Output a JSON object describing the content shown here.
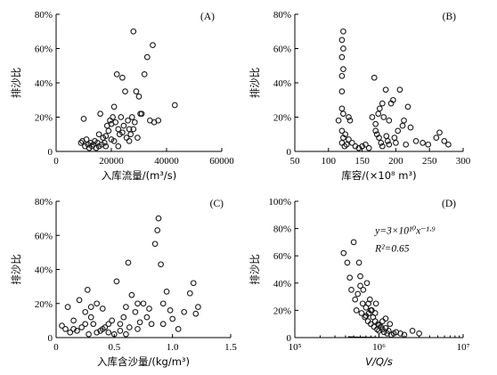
{
  "chart_data": [
    {
      "type": "scatter",
      "panel_label": "(A)",
      "xlabel": "入库流量/(m³/s)",
      "ylabel": "排沙比",
      "xlim": [
        0,
        60000
      ],
      "ylim": [
        0,
        80
      ],
      "x_ticks": [
        0,
        20000,
        40000,
        60000
      ],
      "x_tick_labels": [
        "0",
        "20000",
        "40000",
        "60000"
      ],
      "y_ticks": [
        0,
        20,
        40,
        60,
        80
      ],
      "y_tick_labels": [
        "0",
        "20%",
        "40%",
        "60%",
        "80%"
      ],
      "points": [
        [
          9000,
          5
        ],
        [
          9500,
          6
        ],
        [
          10000,
          19
        ],
        [
          10500,
          3
        ],
        [
          11000,
          7
        ],
        [
          11500,
          4
        ],
        [
          12000,
          2
        ],
        [
          12500,
          5
        ],
        [
          13000,
          3
        ],
        [
          13500,
          4
        ],
        [
          14000,
          6
        ],
        [
          14500,
          2
        ],
        [
          15000,
          5
        ],
        [
          15500,
          3
        ],
        [
          16000,
          22
        ],
        [
          16500,
          4
        ],
        [
          17000,
          8
        ],
        [
          17500,
          5
        ],
        [
          18000,
          9
        ],
        [
          18500,
          15
        ],
        [
          19000,
          12
        ],
        [
          19500,
          18
        ],
        [
          20000,
          7
        ],
        [
          20500,
          20
        ],
        [
          21000,
          26
        ],
        [
          21500,
          17
        ],
        [
          22000,
          45
        ],
        [
          22500,
          13
        ],
        [
          23000,
          10
        ],
        [
          23500,
          20
        ],
        [
          24000,
          43
        ],
        [
          24500,
          15
        ],
        [
          25000,
          35
        ],
        [
          25500,
          8
        ],
        [
          26000,
          18
        ],
        [
          26500,
          13
        ],
        [
          27000,
          10
        ],
        [
          27500,
          20
        ],
        [
          28000,
          70
        ],
        [
          28500,
          17
        ],
        [
          29000,
          35
        ],
        [
          29500,
          8
        ],
        [
          30000,
          32
        ],
        [
          30500,
          22
        ],
        [
          31000,
          22
        ],
        [
          32000,
          45
        ],
        [
          33000,
          55
        ],
        [
          34000,
          18
        ],
        [
          35000,
          62
        ],
        [
          35500,
          17
        ],
        [
          37000,
          18
        ],
        [
          43000,
          27
        ],
        [
          20000,
          16
        ],
        [
          22500,
          3
        ],
        [
          24000,
          11
        ],
        [
          26500,
          6
        ],
        [
          28000,
          13
        ],
        [
          18000,
          3
        ],
        [
          21000,
          6
        ],
        [
          15500,
          10
        ]
      ]
    },
    {
      "type": "scatter",
      "panel_label": "(B)",
      "xlabel": "库容/(×10⁸ m³)",
      "ylabel": "排沙比",
      "xlim": [
        50,
        300
      ],
      "ylim": [
        0,
        80
      ],
      "x_ticks": [
        50,
        100,
        150,
        200,
        250,
        300
      ],
      "x_tick_labels": [
        "50",
        "100",
        "150",
        "200",
        "250",
        "300"
      ],
      "y_ticks": [
        0,
        20,
        40,
        60,
        80
      ],
      "y_tick_labels": [
        "0",
        "20%",
        "40%",
        "60%",
        "80%"
      ],
      "points": [
        [
          115,
          18
        ],
        [
          120,
          65
        ],
        [
          120,
          55
        ],
        [
          120,
          44
        ],
        [
          120,
          35
        ],
        [
          120,
          25
        ],
        [
          120,
          12
        ],
        [
          120,
          5
        ],
        [
          122,
          70
        ],
        [
          122,
          60
        ],
        [
          122,
          48
        ],
        [
          122,
          22
        ],
        [
          122,
          8
        ],
        [
          124,
          3
        ],
        [
          125,
          10
        ],
        [
          127,
          4
        ],
        [
          130,
          20
        ],
        [
          130,
          7
        ],
        [
          132,
          18
        ],
        [
          135,
          5
        ],
        [
          140,
          3
        ],
        [
          145,
          2
        ],
        [
          150,
          3
        ],
        [
          155,
          4
        ],
        [
          160,
          2
        ],
        [
          165,
          20
        ],
        [
          168,
          43
        ],
        [
          170,
          16
        ],
        [
          172,
          10
        ],
        [
          175,
          8
        ],
        [
          178,
          5
        ],
        [
          180,
          3
        ],
        [
          182,
          20
        ],
        [
          185,
          36
        ],
        [
          188,
          6
        ],
        [
          190,
          18
        ],
        [
          193,
          28
        ],
        [
          196,
          30
        ],
        [
          200,
          5
        ],
        [
          203,
          12
        ],
        [
          206,
          36
        ],
        [
          210,
          15
        ],
        [
          212,
          18
        ],
        [
          215,
          4
        ],
        [
          218,
          26
        ],
        [
          222,
          14
        ],
        [
          230,
          6
        ],
        [
          240,
          5
        ],
        [
          248,
          4
        ],
        [
          260,
          8
        ],
        [
          265,
          11
        ],
        [
          272,
          6
        ],
        [
          278,
          4
        ],
        [
          170,
          12
        ],
        [
          176,
          25
        ],
        [
          174,
          22
        ],
        [
          180,
          28
        ],
        [
          186,
          9
        ],
        [
          190,
          4
        ],
        [
          198,
          8
        ]
      ]
    },
    {
      "type": "scatter",
      "panel_label": "(C)",
      "xlabel": "入库含沙量/(kg/m³)",
      "ylabel": "排沙比",
      "xlim": [
        0,
        1.5
      ],
      "ylim": [
        0,
        80
      ],
      "x_ticks": [
        0,
        0.5,
        1.0,
        1.5
      ],
      "x_tick_labels": [
        "0",
        "0.5",
        "1.0",
        "1.5"
      ],
      "y_ticks": [
        0,
        20,
        40,
        60,
        80
      ],
      "y_tick_labels": [
        "0",
        "20%",
        "40%",
        "60%",
        "80%"
      ],
      "points": [
        [
          0.05,
          7
        ],
        [
          0.08,
          5
        ],
        [
          0.1,
          18
        ],
        [
          0.12,
          3
        ],
        [
          0.15,
          10
        ],
        [
          0.18,
          4
        ],
        [
          0.2,
          22
        ],
        [
          0.22,
          6
        ],
        [
          0.25,
          15
        ],
        [
          0.27,
          28
        ],
        [
          0.28,
          2
        ],
        [
          0.3,
          12
        ],
        [
          0.32,
          8
        ],
        [
          0.35,
          20
        ],
        [
          0.38,
          4
        ],
        [
          0.4,
          17
        ],
        [
          0.42,
          6
        ],
        [
          0.45,
          3
        ],
        [
          0.48,
          10
        ],
        [
          0.5,
          2
        ],
        [
          0.52,
          33
        ],
        [
          0.55,
          8
        ],
        [
          0.58,
          12
        ],
        [
          0.6,
          18
        ],
        [
          0.62,
          44
        ],
        [
          0.63,
          6
        ],
        [
          0.65,
          25
        ],
        [
          0.68,
          15
        ],
        [
          0.7,
          5
        ],
        [
          0.72,
          9
        ],
        [
          0.75,
          20
        ],
        [
          0.78,
          12
        ],
        [
          0.8,
          17
        ],
        [
          0.82,
          8
        ],
        [
          0.85,
          55
        ],
        [
          0.87,
          63
        ],
        [
          0.88,
          70
        ],
        [
          0.9,
          43
        ],
        [
          0.92,
          20
        ],
        [
          0.95,
          27
        ],
        [
          0.98,
          16
        ],
        [
          1.0,
          11
        ],
        [
          1.05,
          5
        ],
        [
          1.1,
          15
        ],
        [
          1.15,
          26
        ],
        [
          1.18,
          32
        ],
        [
          1.2,
          14
        ],
        [
          1.22,
          18
        ],
        [
          0.7,
          20
        ],
        [
          0.4,
          5
        ],
        [
          0.25,
          8
        ],
        [
          0.35,
          3
        ],
        [
          0.55,
          4
        ],
        [
          0.92,
          8
        ],
        [
          0.15,
          5
        ],
        [
          0.3,
          18
        ],
        [
          0.45,
          8
        ],
        [
          0.6,
          2
        ]
      ]
    },
    {
      "type": "scatter",
      "panel_label": "(D)",
      "xlabel": "V/Q/s",
      "ylabel": "排沙比",
      "xscale": "log",
      "xlim": [
        100000,
        10000000
      ],
      "ylim": [
        0,
        100
      ],
      "x_ticks": [
        100000,
        1000000,
        10000000
      ],
      "x_tick_labels": [
        "10⁵",
        "10⁶",
        "10⁷"
      ],
      "y_ticks": [
        0,
        20,
        40,
        60,
        80,
        100
      ],
      "y_tick_labels": [
        "0",
        "20%",
        "40%",
        "60%",
        "80%",
        "100%"
      ],
      "fit_equation": "y=3×10¹⁰x⁻¹·⁹",
      "r_squared": "R²=0.65",
      "fit": {
        "a": 30000000000,
        "b": -1.9,
        "x_range": [
          430000,
          2000000
        ]
      },
      "points": [
        [
          380000,
          62
        ],
        [
          420000,
          55
        ],
        [
          450000,
          44
        ],
        [
          470000,
          35
        ],
        [
          500000,
          70
        ],
        [
          520000,
          28
        ],
        [
          540000,
          20
        ],
        [
          560000,
          32
        ],
        [
          580000,
          55
        ],
        [
          600000,
          45
        ],
        [
          620000,
          18
        ],
        [
          640000,
          25
        ],
        [
          650000,
          35
        ],
        [
          680000,
          15
        ],
        [
          700000,
          22
        ],
        [
          720000,
          40
        ],
        [
          740000,
          12
        ],
        [
          760000,
          18
        ],
        [
          780000,
          28
        ],
        [
          800000,
          10
        ],
        [
          820000,
          20
        ],
        [
          850000,
          15
        ],
        [
          870000,
          8
        ],
        [
          900000,
          12
        ],
        [
          920000,
          25
        ],
        [
          950000,
          6
        ],
        [
          980000,
          10
        ],
        [
          1000000,
          5
        ],
        [
          1050000,
          8
        ],
        [
          1100000,
          12
        ],
        [
          1150000,
          4
        ],
        [
          1200000,
          7
        ],
        [
          1250000,
          3
        ],
        [
          1300000,
          5
        ],
        [
          1350000,
          10
        ],
        [
          1400000,
          2
        ],
        [
          1500000,
          3
        ],
        [
          1600000,
          4
        ],
        [
          1800000,
          3
        ],
        [
          2000000,
          2
        ],
        [
          2500000,
          5
        ],
        [
          3000000,
          3
        ],
        [
          600000,
          38
        ],
        [
          700000,
          16
        ],
        [
          900000,
          18
        ],
        [
          1100000,
          6
        ],
        [
          1200000,
          14
        ],
        [
          1000000,
          9
        ],
        [
          800000,
          20
        ],
        [
          750000,
          25
        ]
      ]
    }
  ]
}
